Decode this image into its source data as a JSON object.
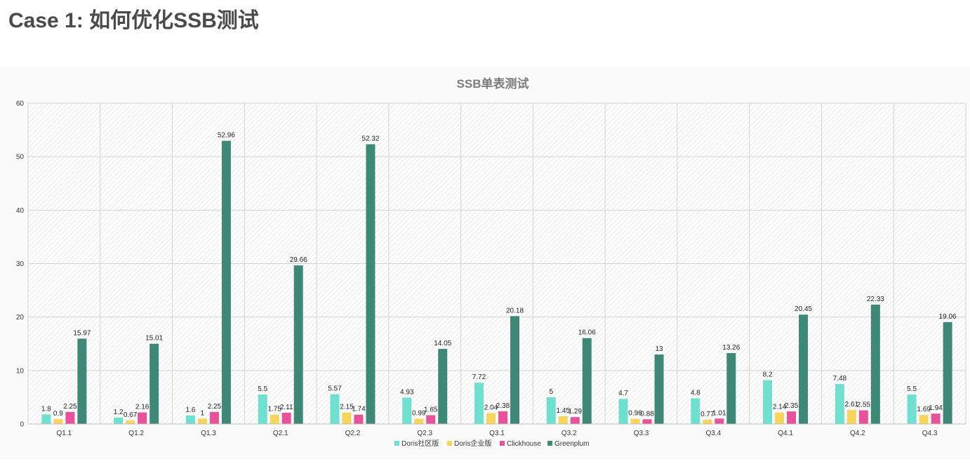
{
  "page": {
    "title": "Case 1: 如何优化SSB测试"
  },
  "chart_data": {
    "type": "bar",
    "title": "SSB单表测试",
    "xlabel": "",
    "ylabel": "",
    "ylim": [
      0,
      60
    ],
    "yticks": [
      0,
      10,
      20,
      30,
      40,
      50,
      60
    ],
    "grid": true,
    "legend_position": "bottom",
    "categories": [
      "Q1.1",
      "Q1.2",
      "Q1.3",
      "Q2.1",
      "Q2.2",
      "Q2.3",
      "Q3.1",
      "Q3.2",
      "Q3.3",
      "Q3.4",
      "Q4.1",
      "Q4.2",
      "Q4.3"
    ],
    "series": [
      {
        "name": "Doris社区版",
        "color": "#6fe0d0",
        "values": [
          1.8,
          1.2,
          1.6,
          5.5,
          5.57,
          4.93,
          7.72,
          5,
          4.7,
          4.8,
          8.2,
          7.48,
          5.5
        ]
      },
      {
        "name": "Doris企业版",
        "color": "#f7d55c",
        "values": [
          0.9,
          0.67,
          1,
          1.75,
          2.15,
          0.99,
          2.04,
          1.45,
          0.96,
          0.77,
          2.14,
          2.61,
          1.69
        ]
      },
      {
        "name": "Clickhouse",
        "color": "#e8529a",
        "values": [
          2.25,
          2.16,
          2.25,
          2.11,
          1.74,
          1.65,
          2.38,
          1.29,
          0.88,
          1.01,
          2.35,
          2.55,
          1.94
        ]
      },
      {
        "name": "Greenplum",
        "color": "#3e8877",
        "values": [
          15.97,
          15.01,
          52.96,
          29.66,
          52.32,
          14.05,
          20.18,
          16.06,
          13,
          13.26,
          20.45,
          22.33,
          19.06
        ]
      }
    ]
  }
}
